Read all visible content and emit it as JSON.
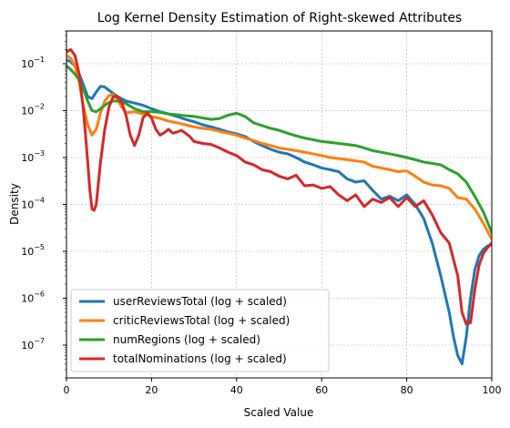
{
  "chart_data": {
    "type": "line",
    "title": "Log Kernel Density Estimation of Right-skewed Attributes",
    "xlabel": "Scaled Value",
    "ylabel": "Density",
    "xlim": [
      0,
      100
    ],
    "ylim": [
      2e-08,
      0.5
    ],
    "yscale": "log",
    "grid": true,
    "legend_position": "bottom-left",
    "x_ticks": [
      0,
      20,
      40,
      60,
      80,
      100
    ],
    "x_tick_labels": [
      "0",
      "20",
      "40",
      "60",
      "80",
      "100"
    ],
    "y_ticks": [
      1e-07,
      1e-06,
      1e-05,
      0.0001,
      0.001,
      0.01,
      0.1
    ],
    "y_tick_labels": [
      "10",
      "10",
      "10",
      "10",
      "10",
      "10",
      "10"
    ],
    "y_tick_exponents": [
      "−7",
      "−6",
      "−5",
      "−4",
      "−3",
      "−2",
      "−1"
    ],
    "series": [
      {
        "name": "userReviewsTotal (log + scaled)",
        "color": "#1f77b4",
        "x": [
          0,
          1,
          2,
          3,
          4,
          5,
          6,
          7,
          8,
          9,
          10,
          12,
          14,
          16,
          18,
          20,
          22,
          24,
          26,
          28,
          30,
          32,
          34,
          36,
          38,
          40,
          42,
          44,
          46,
          48,
          50,
          52,
          54,
          56,
          58,
          60,
          62,
          64,
          66,
          68,
          70,
          72,
          74,
          76,
          78,
          80,
          82,
          84,
          86,
          88,
          90,
          91,
          92,
          93,
          94,
          95,
          96,
          97,
          98,
          99,
          100
        ],
        "y": [
          0.12,
          0.11,
          0.09,
          0.06,
          0.035,
          0.02,
          0.018,
          0.025,
          0.033,
          0.032,
          0.027,
          0.02,
          0.016,
          0.0145,
          0.013,
          0.011,
          0.0095,
          0.0085,
          0.0075,
          0.0065,
          0.0058,
          0.005,
          0.0045,
          0.004,
          0.0035,
          0.0032,
          0.0028,
          0.0022,
          0.0018,
          0.0015,
          0.0013,
          0.0012,
          0.001,
          0.0008,
          0.0007,
          0.0006,
          0.00055,
          0.0005,
          0.00035,
          0.0003,
          0.00032,
          0.0002,
          0.00013,
          0.00015,
          0.00012,
          0.00016,
          0.0001,
          5e-05,
          1.5e-05,
          3e-06,
          5e-07,
          1.5e-07,
          6e-08,
          4e-08,
          1.5e-07,
          1e-06,
          4e-06,
          8e-06,
          1.1e-05,
          1.3e-05,
          1.4e-05
        ]
      },
      {
        "name": "criticReviewsTotal (log + scaled)",
        "color": "#ff7f0e",
        "x": [
          0,
          1,
          2,
          3,
          4,
          5,
          6,
          7,
          8,
          9,
          10,
          11,
          12,
          13,
          14,
          16,
          18,
          20,
          22,
          24,
          26,
          28,
          30,
          32,
          34,
          36,
          38,
          40,
          42,
          44,
          46,
          48,
          50,
          52,
          54,
          56,
          58,
          60,
          62,
          64,
          66,
          68,
          70,
          72,
          74,
          76,
          78,
          80,
          82,
          84,
          86,
          88,
          90,
          92,
          94,
          96,
          98,
          100
        ],
        "y": [
          0.15,
          0.13,
          0.09,
          0.04,
          0.012,
          0.005,
          0.003,
          0.004,
          0.009,
          0.016,
          0.021,
          0.022,
          0.017,
          0.012,
          0.009,
          0.0095,
          0.0085,
          0.0075,
          0.0068,
          0.006,
          0.0055,
          0.005,
          0.0045,
          0.0042,
          0.004,
          0.0036,
          0.0033,
          0.003,
          0.0026,
          0.0023,
          0.002,
          0.0018,
          0.0016,
          0.0015,
          0.0014,
          0.0013,
          0.0012,
          0.0011,
          0.001,
          0.00095,
          0.0009,
          0.00085,
          0.0008,
          0.00065,
          0.0006,
          0.00055,
          0.0005,
          0.00052,
          0.0004,
          0.0003,
          0.00026,
          0.00025,
          0.00022,
          0.00014,
          0.00013,
          8e-05,
          4e-05,
          1.8e-05
        ]
      },
      {
        "name": "numRegions (log + scaled)",
        "color": "#2ca02c",
        "x": [
          0,
          1,
          2,
          3,
          4,
          5,
          6,
          7,
          8,
          9,
          10,
          11,
          12,
          13,
          14,
          16,
          18,
          20,
          22,
          24,
          26,
          28,
          30,
          32,
          34,
          36,
          38,
          40,
          42,
          44,
          46,
          48,
          50,
          52,
          54,
          56,
          58,
          60,
          62,
          64,
          66,
          68,
          70,
          72,
          74,
          76,
          78,
          80,
          82,
          84,
          86,
          88,
          90,
          92,
          94,
          96,
          98,
          100
        ],
        "y": [
          0.09,
          0.075,
          0.06,
          0.045,
          0.028,
          0.016,
          0.01,
          0.0095,
          0.011,
          0.013,
          0.015,
          0.016,
          0.016,
          0.0155,
          0.014,
          0.011,
          0.0095,
          0.0095,
          0.0092,
          0.0085,
          0.0082,
          0.0078,
          0.0075,
          0.007,
          0.0065,
          0.0068,
          0.008,
          0.0088,
          0.0075,
          0.0055,
          0.0048,
          0.0042,
          0.0038,
          0.0033,
          0.0029,
          0.0026,
          0.0024,
          0.0022,
          0.0021,
          0.002,
          0.0019,
          0.0018,
          0.0016,
          0.0014,
          0.0013,
          0.0012,
          0.0011,
          0.001,
          0.0009,
          0.0008,
          0.00075,
          0.0007,
          0.00055,
          0.00045,
          0.0003,
          0.00015,
          7e-05,
          2.5e-05
        ]
      },
      {
        "name": "totalNominations (log + scaled)",
        "color": "#d62728",
        "x": [
          0,
          1,
          2,
          3,
          4,
          5,
          5.5,
          6,
          6.5,
          7,
          8,
          9,
          10,
          11,
          12,
          13,
          14,
          15,
          16,
          17,
          18,
          19,
          20,
          21,
          22,
          23,
          24,
          25,
          26,
          27,
          28,
          29,
          30,
          32,
          34,
          36,
          38,
          40,
          42,
          44,
          46,
          48,
          50,
          52,
          54,
          56,
          58,
          60,
          62,
          64,
          66,
          68,
          70,
          72,
          74,
          76,
          78,
          80,
          82,
          84,
          86,
          88,
          90,
          92,
          93,
          94,
          95,
          96,
          97,
          98,
          99,
          100
        ],
        "y": [
          0.18,
          0.2,
          0.15,
          0.06,
          0.01,
          0.0008,
          0.0002,
          8e-05,
          7.5e-05,
          0.0001,
          0.0008,
          0.004,
          0.012,
          0.02,
          0.02,
          0.015,
          0.008,
          0.003,
          0.0018,
          0.003,
          0.007,
          0.009,
          0.007,
          0.004,
          0.003,
          0.0034,
          0.004,
          0.0033,
          0.0035,
          0.0038,
          0.0033,
          0.0028,
          0.0022,
          0.002,
          0.0019,
          0.0016,
          0.0013,
          0.0011,
          0.0008,
          0.0007,
          0.00055,
          0.0005,
          0.0004,
          0.00035,
          0.00042,
          0.00025,
          0.00026,
          0.00022,
          0.00024,
          0.00016,
          0.00012,
          0.00016,
          9e-05,
          0.00013,
          0.00011,
          0.00014,
          9e-05,
          0.00014,
          9e-05,
          0.00012,
          6e-05,
          2.5e-05,
          1.5e-05,
          3e-06,
          5e-07,
          2.8e-07,
          3e-07,
          1.5e-06,
          5e-06,
          9e-06,
          1.2e-05,
          1.5e-05
        ]
      }
    ]
  }
}
